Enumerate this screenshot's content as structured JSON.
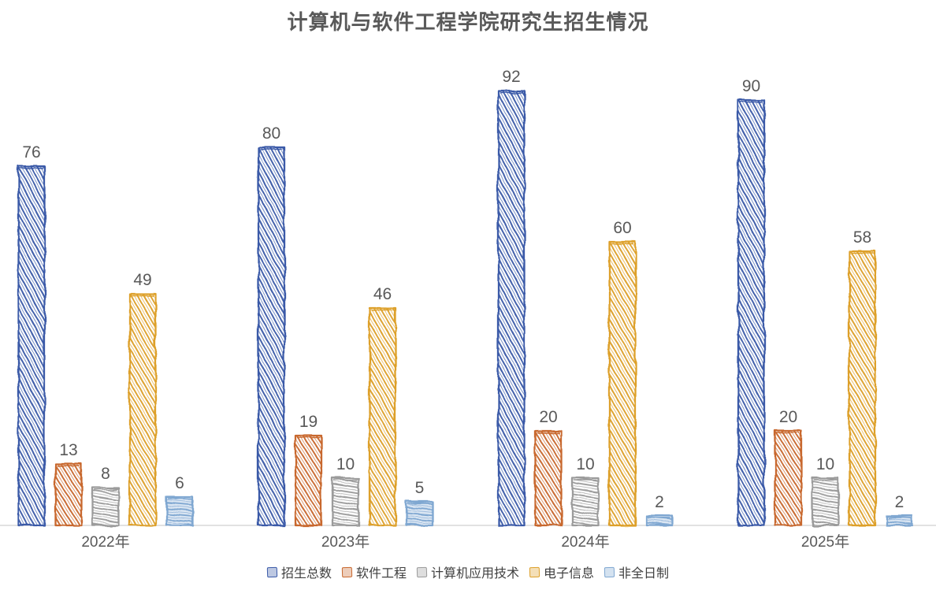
{
  "page": {
    "background": "#FFFFFF"
  },
  "chart_data": {
    "type": "bar",
    "style": "hand-drawn-sketch",
    "title": "计算机与软件工程学院研究生招生情况",
    "title_color": "#595959",
    "categories": [
      "2022年",
      "2023年",
      "2024年",
      "2025年"
    ],
    "series": [
      {
        "name": "招生总数",
        "color": "#3A5AA8",
        "values": [
          76,
          80,
          92,
          90
        ]
      },
      {
        "name": "软件工程",
        "color": "#C8682F",
        "values": [
          13,
          19,
          20,
          20
        ]
      },
      {
        "name": "计算机应用技术",
        "color": "#9B9B9B",
        "values": [
          8,
          10,
          10,
          10
        ]
      },
      {
        "name": "电子信息",
        "color": "#DDA02A",
        "values": [
          49,
          46,
          60,
          58
        ]
      },
      {
        "name": "非全日制",
        "color": "#7FA7D1",
        "values": [
          6,
          5,
          2,
          2
        ]
      }
    ],
    "ylim": [
      0,
      100
    ],
    "y_axis_visible": false,
    "grid": false,
    "data_labels": true,
    "label_color": "#595959",
    "axis_line_color": "#D9D9D9",
    "legend_position": "bottom",
    "legend_text_color": "#404040"
  }
}
